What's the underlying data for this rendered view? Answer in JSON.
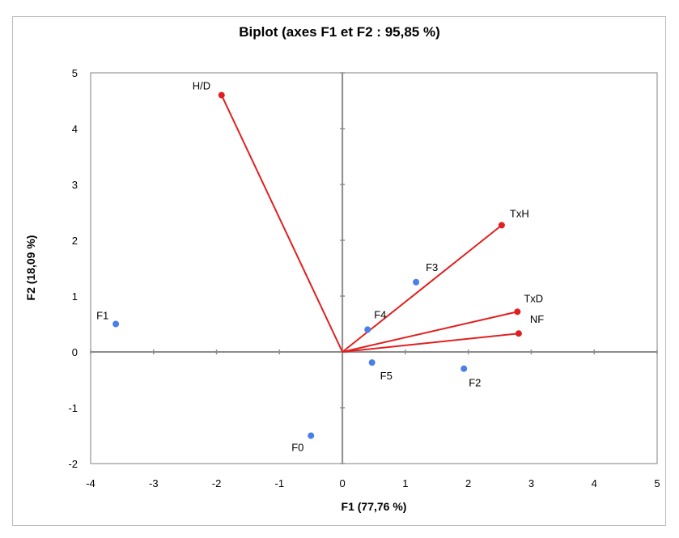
{
  "chart_data": {
    "type": "scatter",
    "title": "Biplot (axes F1 et F2 : 95,85 %)",
    "xlabel": "F1 (77,76 %)",
    "ylabel": "F2 (18,09 %)",
    "xlim": [
      -4,
      5
    ],
    "ylim": [
      -2,
      5
    ],
    "x_ticks": [
      -4,
      -3,
      -2,
      -1,
      0,
      1,
      2,
      3,
      4,
      5
    ],
    "y_ticks": [
      -2,
      -1,
      0,
      1,
      2,
      3,
      4,
      5
    ],
    "grid": false,
    "series": [
      {
        "kind": "observations",
        "color": "#4a7ee8",
        "points": [
          {
            "label": "F1",
            "x": -3.6,
            "y": 0.5
          },
          {
            "label": "F0",
            "x": -0.5,
            "y": -1.5
          },
          {
            "label": "F4",
            "x": 0.4,
            "y": 0.4
          },
          {
            "label": "F5",
            "x": 0.47,
            "y": -0.19
          },
          {
            "label": "F3",
            "x": 1.17,
            "y": 1.25
          },
          {
            "label": "F2",
            "x": 1.93,
            "y": -0.3
          }
        ]
      },
      {
        "kind": "variables",
        "color": "#e02020",
        "vectors": [
          {
            "label": "H/D",
            "x": -1.92,
            "y": 4.6
          },
          {
            "label": "TxH",
            "x": 2.53,
            "y": 2.27
          },
          {
            "label": "TxD",
            "x": 2.78,
            "y": 0.72
          },
          {
            "label": "NF",
            "x": 2.8,
            "y": 0.33
          }
        ]
      }
    ]
  }
}
